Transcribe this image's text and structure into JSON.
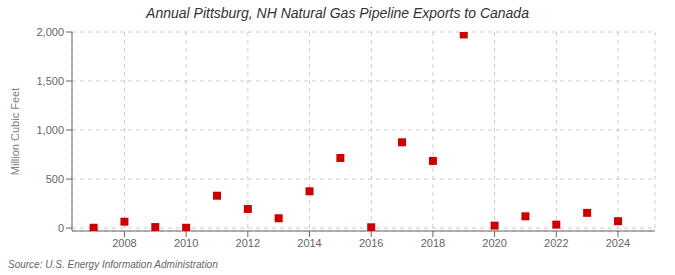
{
  "chart_data": {
    "type": "scatter",
    "title": "Annual Pittsburg, NH Natural Gas Pipeline Exports to Canada",
    "ylabel": "Million Cubic Feet",
    "annotations": [
      "Source: U.S. Energy Information Administration"
    ],
    "x": [
      2007,
      2008,
      2009,
      2010,
      2011,
      2012,
      2013,
      2014,
      2015,
      2016,
      2017,
      2018,
      2019,
      2020,
      2021,
      2022,
      2023,
      2024
    ],
    "values": [
      3,
      65,
      10,
      3,
      330,
      195,
      100,
      375,
      715,
      8,
      875,
      685,
      1975,
      25,
      120,
      35,
      155,
      70
    ],
    "color": "#cc0000",
    "marker": "square",
    "xlim": [
      2006.3,
      2025.2
    ],
    "xticks": [
      2008,
      2010,
      2012,
      2014,
      2016,
      2018,
      2020,
      2022,
      2024
    ],
    "ylim": [
      -30,
      2000
    ],
    "yticks": [
      0,
      500,
      {
        "value": 1000,
        "label": "1,000"
      },
      {
        "value": 1500,
        "label": "1,500"
      },
      {
        "value": 2000,
        "label": "2,000"
      }
    ],
    "grid": true
  }
}
